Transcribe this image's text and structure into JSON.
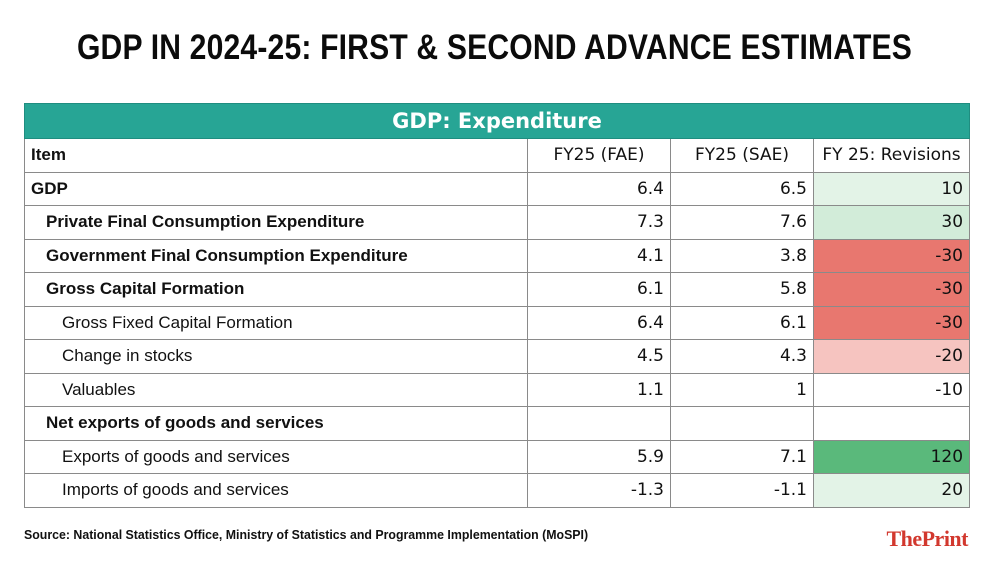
{
  "title": "GDP IN 2024-25: FIRST & SECOND ADVANCE ESTIMATES",
  "source": "Source: National Statistics Office, Ministry of Statistics and Programme Implementation (MoSPI)",
  "brand": "ThePrint",
  "colors": {
    "header_teal": "#27a595",
    "positive_light": "#e3f3e7",
    "positive_mid": "#d2ecd9",
    "positive_strong": "#5ab97b",
    "negative_light": "#f6c4c0",
    "negative_strong": "#e8776f",
    "brand_red": "#d2382e"
  },
  "chart_data": {
    "type": "table",
    "title": "GDP: Expenditure",
    "columns": [
      "Item",
      "FY25 (FAE)",
      "FY25 (SAE)",
      "FY 25: Revisions"
    ],
    "rows": [
      {
        "item": "GDP",
        "level": 0,
        "fae": "6.4",
        "sae": "6.5",
        "revision": "10",
        "revision_value": 10
      },
      {
        "item": "Private Final Consumption Expenditure",
        "level": 1,
        "fae": "7.3",
        "sae": "7.6",
        "revision": "30",
        "revision_value": 30
      },
      {
        "item": "Government Final Consumption Expenditure",
        "level": 1,
        "fae": "4.1",
        "sae": "3.8",
        "revision": "-30",
        "revision_value": -30
      },
      {
        "item": "Gross Capital Formation",
        "level": 1,
        "fae": "6.1",
        "sae": "5.8",
        "revision": "-30",
        "revision_value": -30
      },
      {
        "item": "Gross Fixed Capital Formation",
        "level": 2,
        "fae": "6.4",
        "sae": "6.1",
        "revision": "-30",
        "revision_value": -30
      },
      {
        "item": "Change in stocks",
        "level": 2,
        "fae": "4.5",
        "sae": "4.3",
        "revision": "-20",
        "revision_value": -20
      },
      {
        "item": "Valuables",
        "level": 2,
        "fae": "1.1",
        "sae": "1",
        "revision": "-10",
        "revision_value": -10
      },
      {
        "item": "Net exports of goods and services",
        "level": 1,
        "fae": "",
        "sae": "",
        "revision": "",
        "revision_value": null
      },
      {
        "item": "Exports of goods and services",
        "level": 2,
        "fae": "5.9",
        "sae": "7.1",
        "revision": "120",
        "revision_value": 120
      },
      {
        "item": "Imports of goods and services",
        "level": 2,
        "fae": "-1.3",
        "sae": "-1.1",
        "revision": "20",
        "revision_value": 20
      }
    ]
  }
}
